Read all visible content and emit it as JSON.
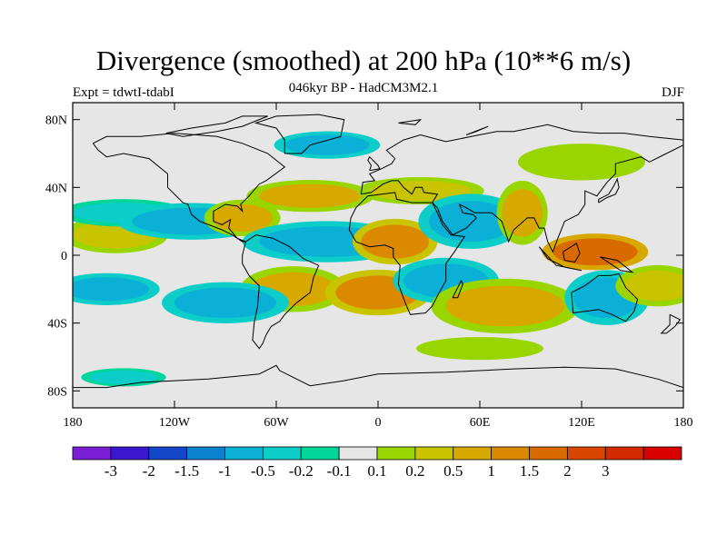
{
  "chart_data": {
    "type": "heatmap",
    "title": "Divergence (smoothed) at 200 hPa (10**6 m/s)",
    "subtitle": "046kyr BP - HadCM3M2.1",
    "left_label": "Expt = tdwtI-tdabI",
    "right_label": "DJF",
    "xlim": [
      -180,
      180
    ],
    "ylim": [
      -90,
      90
    ],
    "x_ticks": [
      {
        "value": -180,
        "label": "180"
      },
      {
        "value": -120,
        "label": "120W"
      },
      {
        "value": -60,
        "label": "60W"
      },
      {
        "value": 0,
        "label": "0"
      },
      {
        "value": 60,
        "label": "60E"
      },
      {
        "value": 120,
        "label": "120E"
      },
      {
        "value": 180,
        "label": "180"
      }
    ],
    "y_ticks": [
      {
        "value": 80,
        "label": "80N"
      },
      {
        "value": 40,
        "label": "40N"
      },
      {
        "value": 0,
        "label": "0"
      },
      {
        "value": -40,
        "label": "40S"
      },
      {
        "value": -80,
        "label": "80S"
      }
    ],
    "colorbar": {
      "colors": [
        "#7a1fd6",
        "#3a16d0",
        "#1346c9",
        "#0a82d0",
        "#0bb0d6",
        "#0ccdc8",
        "#00d59a",
        "#e6e6e6",
        "#99d500",
        "#c9c400",
        "#d7a800",
        "#db8a00",
        "#d96a00",
        "#d84600",
        "#d42a00",
        "#d90000"
      ],
      "labels": [
        "-3",
        "-2",
        "-1.5",
        "-1",
        "-0.5",
        "-0.2",
        "-0.1",
        "0.1",
        "0.2",
        "0.5",
        "1",
        "1.5",
        "2",
        "3"
      ]
    },
    "features": [
      {
        "name": "tropical-pacific-positive",
        "lon": -155,
        "lat": 12,
        "rx": 25,
        "ry": 8,
        "level": 9
      },
      {
        "name": "north-pacific-negative",
        "lon": -150,
        "lat": 25,
        "rx": 30,
        "ry": 6,
        "level": 5
      },
      {
        "name": "east-pacific-negative",
        "lon": -110,
        "lat": 20,
        "rx": 35,
        "ry": 8,
        "level": 4
      },
      {
        "name": "central-america-positive",
        "lon": -80,
        "lat": 22,
        "rx": 18,
        "ry": 8,
        "level": 10
      },
      {
        "name": "atlantic-north-positive",
        "lon": -40,
        "lat": 35,
        "rx": 30,
        "ry": 7,
        "level": 10
      },
      {
        "name": "atlantic-equatorial-negative",
        "lon": -30,
        "lat": 8,
        "rx": 40,
        "ry": 9,
        "level": 4
      },
      {
        "name": "north-africa-positive",
        "lon": 10,
        "lat": 8,
        "rx": 20,
        "ry": 10,
        "level": 11
      },
      {
        "name": "mediterranean-positive",
        "lon": 25,
        "lat": 38,
        "rx": 30,
        "ry": 6,
        "level": 9
      },
      {
        "name": "arabia-negative",
        "lon": 55,
        "lat": 20,
        "rx": 25,
        "ry": 12,
        "level": 4
      },
      {
        "name": "india-positive",
        "lon": 85,
        "lat": 25,
        "rx": 12,
        "ry": 14,
        "level": 10
      },
      {
        "name": "maritime-continent-positive",
        "lon": 128,
        "lat": 2,
        "rx": 25,
        "ry": 8,
        "level": 12
      },
      {
        "name": "south-america-positive",
        "lon": -50,
        "lat": -20,
        "rx": 25,
        "ry": 10,
        "level": 10
      },
      {
        "name": "south-pacific-negative",
        "lon": -90,
        "lat": -28,
        "rx": 30,
        "ry": 9,
        "level": 4
      },
      {
        "name": "south-atlantic-positive",
        "lon": 0,
        "lat": -22,
        "rx": 25,
        "ry": 10,
        "level": 11
      },
      {
        "name": "southern-africa-negative",
        "lon": 40,
        "lat": -15,
        "rx": 25,
        "ry": 10,
        "level": 4
      },
      {
        "name": "indian-ocean-positive",
        "lon": 75,
        "lat": -30,
        "rx": 35,
        "ry": 12,
        "level": 10
      },
      {
        "name": "australia-negative",
        "lon": 135,
        "lat": -25,
        "rx": 20,
        "ry": 12,
        "level": 4
      },
      {
        "name": "southwest-pacific-positive",
        "lon": 165,
        "lat": -18,
        "rx": 20,
        "ry": 9,
        "level": 9
      },
      {
        "name": "western-south-pacific-negative",
        "lon": -160,
        "lat": -20,
        "rx": 25,
        "ry": 7,
        "level": 4
      },
      {
        "name": "north-asia-positive",
        "lon": 120,
        "lat": 55,
        "rx": 30,
        "ry": 8,
        "level": 8
      },
      {
        "name": "arctic-negative",
        "lon": -30,
        "lat": 65,
        "rx": 25,
        "ry": 6,
        "level": 4
      },
      {
        "name": "southern-ocean-positive",
        "lon": 60,
        "lat": -55,
        "rx": 30,
        "ry": 5,
        "level": 8
      },
      {
        "name": "southern-ocean-negative",
        "lon": -150,
        "lat": -72,
        "rx": 20,
        "ry": 4,
        "level": 5
      }
    ]
  }
}
